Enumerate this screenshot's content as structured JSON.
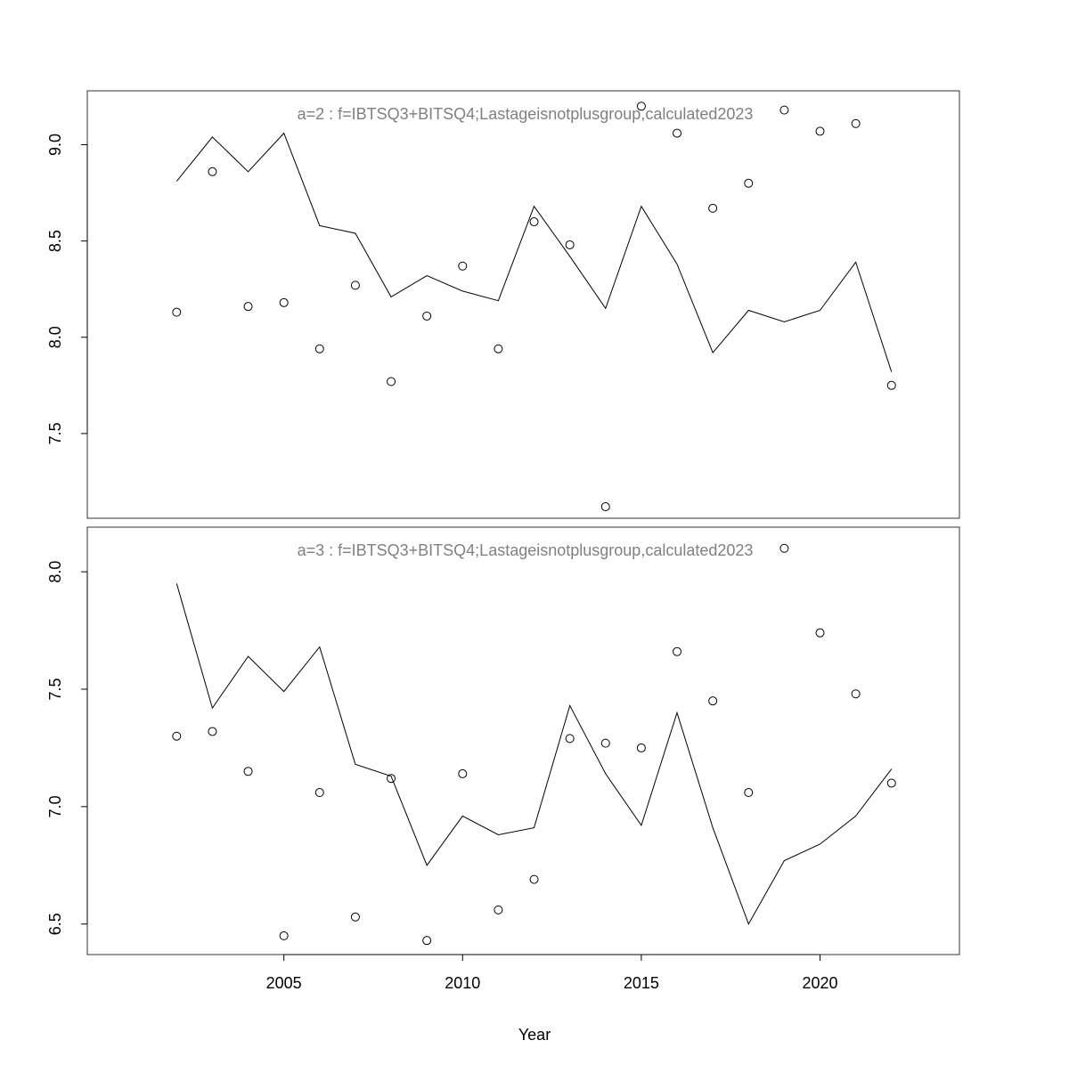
{
  "chart_data": {
    "type": "line",
    "xlabel": "Year",
    "x_ticks": [
      "2005",
      "2010",
      "2015",
      "2020"
    ],
    "x": [
      2002,
      2003,
      2004,
      2005,
      2006,
      2007,
      2008,
      2009,
      2010,
      2011,
      2012,
      2013,
      2014,
      2015,
      2016,
      2017,
      2018,
      2019,
      2020,
      2021,
      2022
    ],
    "xlim": [
      1999.5,
      2023.9
    ],
    "panels": [
      {
        "title": "a=2  :  f=IBTSQ3+BITSQ4;Lastageisnotplusgroup,calculated2023",
        "ylim": [
          7.06,
          9.28
        ],
        "y_ticks": [
          "7.5",
          "8.0",
          "8.5",
          "9.0"
        ],
        "series": [
          {
            "type": "line",
            "values": [
              8.81,
              9.04,
              8.86,
              9.06,
              8.58,
              8.54,
              8.21,
              8.32,
              8.24,
              8.19,
              8.68,
              8.42,
              8.15,
              8.68,
              8.38,
              7.92,
              8.14,
              8.08,
              8.14,
              8.39,
              7.82
            ]
          },
          {
            "type": "scatter",
            "values": [
              8.13,
              8.86,
              8.16,
              8.18,
              7.94,
              8.27,
              7.77,
              8.11,
              8.37,
              7.94,
              8.6,
              8.48,
              7.12,
              9.2,
              9.06,
              8.67,
              8.8,
              9.18,
              9.07,
              9.11,
              7.75
            ]
          }
        ]
      },
      {
        "title": "a=3  :  f=IBTSQ3+BITSQ4;Lastageisnotplusgroup,calculated2023",
        "ylim": [
          6.37,
          8.19
        ],
        "y_ticks": [
          "6.5",
          "7.0",
          "7.5",
          "8.0"
        ],
        "series": [
          {
            "type": "line",
            "values": [
              7.95,
              7.42,
              7.64,
              7.49,
              7.68,
              7.18,
              7.13,
              6.75,
              6.96,
              6.88,
              6.91,
              7.43,
              7.14,
              6.92,
              7.4,
              6.91,
              6.5,
              6.77,
              6.84,
              6.96,
              7.16
            ]
          },
          {
            "type": "scatter",
            "values": [
              7.3,
              7.32,
              7.15,
              6.45,
              7.06,
              6.53,
              7.12,
              6.43,
              7.14,
              6.56,
              6.69,
              7.29,
              7.27,
              7.25,
              7.66,
              7.45,
              7.06,
              8.1,
              7.74,
              7.48,
              7.1
            ]
          }
        ]
      }
    ]
  }
}
